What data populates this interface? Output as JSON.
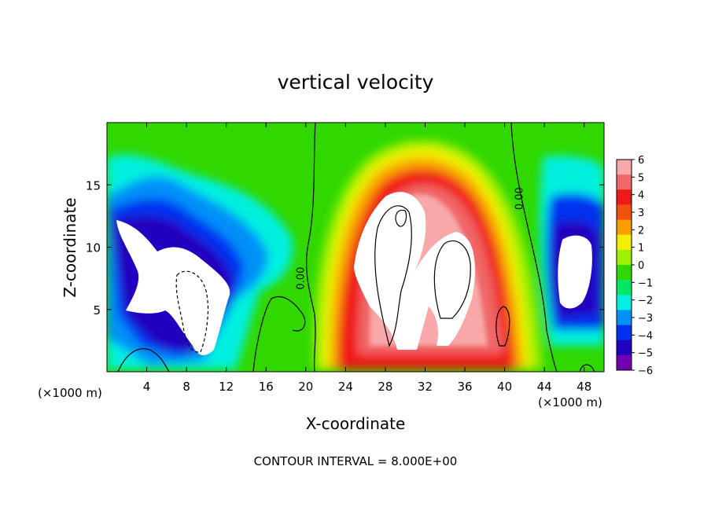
{
  "chart_data": {
    "type": "heatmap",
    "title": "vertical velocity",
    "xlabel": "X-coordinate",
    "ylabel": "Z-coordinate",
    "x_unit_left": "(×1000 m)",
    "x_unit_right": "(×1000 m)",
    "xlim": [
      0,
      50
    ],
    "ylim": [
      0,
      20
    ],
    "x_ticks": [
      4,
      8,
      12,
      16,
      20,
      24,
      28,
      32,
      36,
      40,
      44,
      48
    ],
    "y_ticks": [
      5,
      10,
      15
    ],
    "footer": "CONTOUR INTERVAL = 8.000E+00",
    "contour_labels": [
      {
        "text": "0.00",
        "x": 19.8,
        "y": 7.5
      },
      {
        "text": "0.00",
        "x": 41.8,
        "y": 13.9
      }
    ],
    "colorbar": {
      "min": -6,
      "max": 6,
      "tick_labels": [
        "6",
        "5",
        "4",
        "3",
        "2",
        "1",
        "0",
        "−1",
        "−2",
        "−3",
        "−4",
        "−5",
        "−6"
      ],
      "colors": [
        "#f8a8a8",
        "#f06868",
        "#f01818",
        "#f05010",
        "#f8a000",
        "#f0f000",
        "#a0f000",
        "#30d800",
        "#00e868",
        "#00f0e0",
        "#0090f8",
        "#0030f0",
        "#2000c0",
        "#7000b0"
      ]
    }
  }
}
